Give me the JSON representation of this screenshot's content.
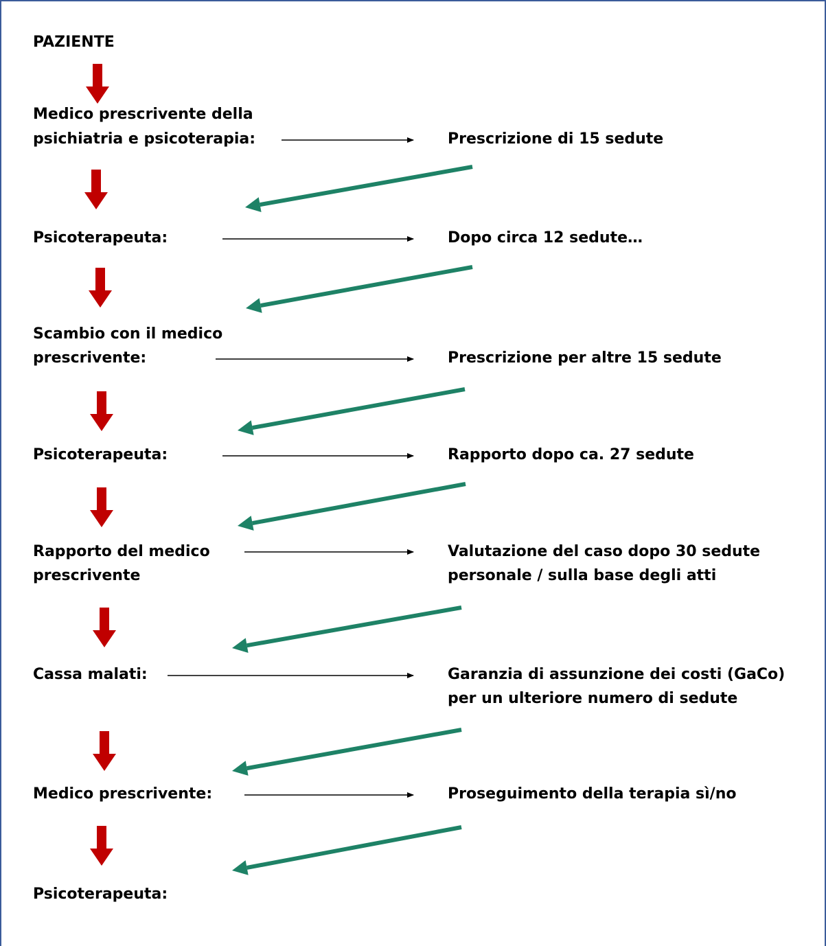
{
  "colors": {
    "down_arrow": "#c00000",
    "return_arrow": "#1e8266",
    "connector": "#000000",
    "frame": "#3b5b9a"
  },
  "steps": [
    {
      "left": [
        "PAZIENTE"
      ],
      "right": []
    },
    {
      "left": [
        "Medico prescrivente della",
        "psichiatria e psicoterapia:"
      ],
      "right": [
        "Prescrizione di 15 sedute"
      ]
    },
    {
      "left": [
        "Psicoterapeuta:"
      ],
      "right": [
        "Dopo circa 12 sedute…"
      ]
    },
    {
      "left": [
        "Scambio con il medico",
        "prescrivente:"
      ],
      "right": [
        "Prescrizione per altre 15 sedute"
      ]
    },
    {
      "left": [
        "Psicoterapeuta:"
      ],
      "right": [
        "Rapporto dopo ca. 27 sedute"
      ]
    },
    {
      "left": [
        "Rapporto del medico",
        "prescrivente"
      ],
      "right": [
        "Valutazione del caso dopo 30 sedute",
        "personale / sulla base degli atti"
      ]
    },
    {
      "left": [
        "Cassa malati:"
      ],
      "right": [
        "Garanzia di assunzione dei costi (GaCo)",
        "per un ulteriore numero di sedute"
      ]
    },
    {
      "left": [
        "Medico prescrivente:"
      ],
      "right": [
        "Proseguimento della terapia sì/no"
      ]
    },
    {
      "left": [
        "Psicoterapeuta:"
      ],
      "right": []
    }
  ]
}
